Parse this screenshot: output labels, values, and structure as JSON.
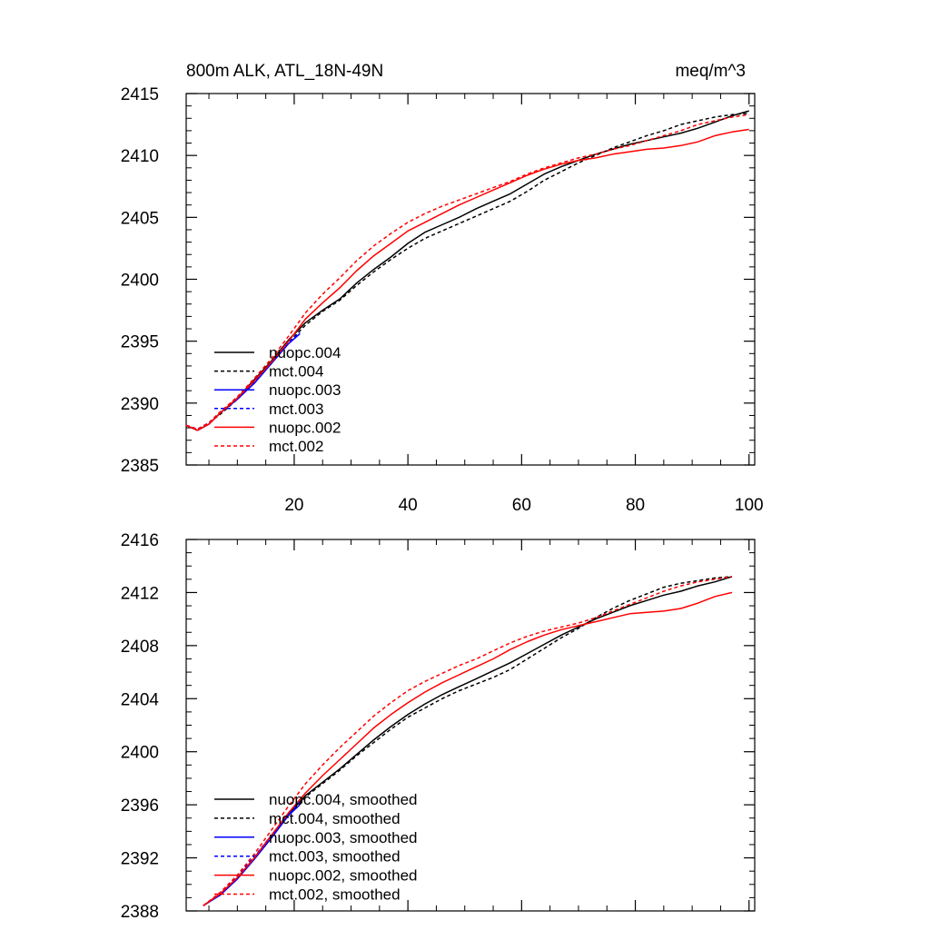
{
  "top_panel": {
    "title_left": "800m ALK, ATL_18N-49N",
    "title_right": "meq/m^3"
  },
  "chart_data": [
    {
      "type": "line",
      "title": "800m ALK, ATL_18N-49N",
      "units": "meq/m^3",
      "xlim": [
        1,
        101
      ],
      "ylim": [
        2385,
        2415
      ],
      "x_ticks": [
        20,
        40,
        60,
        80,
        100
      ],
      "y_ticks": [
        2385,
        2390,
        2395,
        2400,
        2405,
        2410,
        2415
      ],
      "grid": false,
      "legend_position": "bottom-left",
      "series": [
        {
          "name": "nuopc.004",
          "color": "#000000",
          "dash": "solid",
          "x": [
            1,
            3,
            5,
            7,
            10,
            13,
            16,
            19,
            22,
            25,
            28,
            31,
            34,
            37,
            40,
            43,
            46,
            49,
            52,
            55,
            58,
            61,
            64,
            67,
            70,
            73,
            76,
            79,
            82,
            85,
            88,
            91,
            94,
            97,
            100
          ],
          "y": [
            2388.2,
            2387.8,
            2388.3,
            2389.2,
            2390.4,
            2391.9,
            2393.4,
            2395.1,
            2396.5,
            2397.5,
            2398.4,
            2399.7,
            2400.8,
            2401.8,
            2402.9,
            2403.8,
            2404.4,
            2405.0,
            2405.7,
            2406.3,
            2406.9,
            2407.7,
            2408.5,
            2409.1,
            2409.6,
            2410.1,
            2410.5,
            2410.9,
            2411.2,
            2411.5,
            2411.8,
            2412.2,
            2412.7,
            2413.2,
            2413.6
          ]
        },
        {
          "name": "mct.004",
          "color": "#000000",
          "dash": "dashed",
          "x": [
            1,
            3,
            5,
            7,
            10,
            13,
            16,
            19,
            22,
            25,
            28,
            31,
            34,
            37,
            40,
            43,
            46,
            49,
            52,
            55,
            58,
            61,
            64,
            67,
            70,
            73,
            76,
            79,
            82,
            85,
            88,
            91,
            94,
            97,
            100
          ],
          "y": [
            2388.2,
            2387.9,
            2388.4,
            2389.1,
            2390.3,
            2391.8,
            2393.2,
            2394.9,
            2396.3,
            2397.4,
            2398.3,
            2399.5,
            2400.6,
            2401.6,
            2402.5,
            2403.3,
            2403.9,
            2404.5,
            2405.1,
            2405.7,
            2406.3,
            2407.1,
            2408.0,
            2408.7,
            2409.4,
            2410.0,
            2410.6,
            2411.1,
            2411.6,
            2412.0,
            2412.5,
            2412.8,
            2413.1,
            2413.3,
            2413.4
          ]
        },
        {
          "name": "nuopc.003",
          "color": "#0000ff",
          "dash": "solid",
          "x": [
            1,
            3,
            5,
            7,
            10,
            13,
            16,
            19,
            21
          ],
          "y": [
            2388.2,
            2387.8,
            2388.3,
            2389.2,
            2390.3,
            2391.6,
            2393.2,
            2394.8,
            2395.6
          ]
        },
        {
          "name": "mct.003",
          "color": "#0000ff",
          "dash": "dashed",
          "x": [
            1,
            3,
            5,
            7,
            10,
            13,
            16,
            19,
            21
          ],
          "y": [
            2388.2,
            2387.9,
            2388.4,
            2389.3,
            2390.4,
            2391.7,
            2393.3,
            2394.9,
            2395.7
          ]
        },
        {
          "name": "nuopc.002",
          "color": "#ff0000",
          "dash": "solid",
          "x": [
            1,
            3,
            5,
            7,
            10,
            13,
            16,
            19,
            22,
            25,
            28,
            31,
            34,
            37,
            40,
            43,
            46,
            49,
            52,
            55,
            58,
            61,
            64,
            67,
            70,
            73,
            76,
            79,
            82,
            85,
            88,
            91,
            94,
            97,
            100
          ],
          "y": [
            2388.2,
            2387.8,
            2388.3,
            2389.2,
            2390.4,
            2391.8,
            2393.3,
            2395.0,
            2396.8,
            2398.1,
            2399.3,
            2400.7,
            2401.9,
            2402.9,
            2403.9,
            2404.6,
            2405.3,
            2406.0,
            2406.6,
            2407.2,
            2407.8,
            2408.4,
            2408.9,
            2409.3,
            2409.6,
            2409.8,
            2410.1,
            2410.3,
            2410.5,
            2410.6,
            2410.8,
            2411.1,
            2411.6,
            2411.9,
            2412.1
          ]
        },
        {
          "name": "mct.002",
          "color": "#ff0000",
          "dash": "dashed",
          "x": [
            1,
            3,
            5,
            7,
            10,
            13,
            16,
            19,
            22,
            25,
            28,
            31,
            34,
            37,
            40,
            43,
            46,
            49,
            52,
            55,
            58,
            61,
            64,
            67,
            70,
            73,
            76,
            79,
            82,
            85,
            88,
            91,
            94,
            97,
            100
          ],
          "y": [
            2388.2,
            2387.9,
            2388.4,
            2389.3,
            2390.5,
            2392.0,
            2393.6,
            2395.4,
            2397.3,
            2398.8,
            2400.1,
            2401.5,
            2402.7,
            2403.7,
            2404.6,
            2405.3,
            2405.9,
            2406.4,
            2406.9,
            2407.4,
            2407.9,
            2408.5,
            2409.0,
            2409.4,
            2409.8,
            2410.1,
            2410.5,
            2410.8,
            2411.2,
            2411.6,
            2412.0,
            2412.5,
            2412.8,
            2413.1,
            2413.3
          ]
        }
      ]
    },
    {
      "type": "line",
      "title": "",
      "xlim": [
        1,
        101
      ],
      "ylim": [
        2388,
        2416
      ],
      "y_ticks": [
        2388,
        2392,
        2396,
        2400,
        2404,
        2408,
        2412,
        2416
      ],
      "grid": false,
      "legend_position": "bottom-left",
      "series": [
        {
          "name": "nuopc.004, smoothed",
          "color": "#000000",
          "dash": "solid",
          "x": [
            4,
            7,
            10,
            13,
            16,
            19,
            22,
            25,
            28,
            31,
            34,
            37,
            40,
            43,
            46,
            49,
            52,
            55,
            58,
            61,
            64,
            67,
            70,
            73,
            76,
            79,
            82,
            85,
            88,
            91,
            94,
            97
          ],
          "y": [
            2388.4,
            2389.3,
            2390.5,
            2392.0,
            2393.7,
            2395.3,
            2396.7,
            2397.7,
            2398.7,
            2399.8,
            2400.9,
            2401.9,
            2402.8,
            2403.6,
            2404.3,
            2404.9,
            2405.5,
            2406.1,
            2406.7,
            2407.4,
            2408.1,
            2408.8,
            2409.4,
            2410.0,
            2410.5,
            2411.0,
            2411.4,
            2411.8,
            2412.1,
            2412.5,
            2412.8,
            2413.2
          ]
        },
        {
          "name": "mct.004, smoothed",
          "color": "#000000",
          "dash": "dashed",
          "x": [
            4,
            7,
            10,
            13,
            16,
            19,
            22,
            25,
            28,
            31,
            34,
            37,
            40,
            43,
            46,
            49,
            52,
            55,
            58,
            61,
            64,
            67,
            70,
            73,
            76,
            79,
            82,
            85,
            88,
            91,
            94,
            97
          ],
          "y": [
            2388.4,
            2389.3,
            2390.5,
            2392.0,
            2393.6,
            2395.2,
            2396.6,
            2397.6,
            2398.6,
            2399.7,
            2400.7,
            2401.7,
            2402.6,
            2403.3,
            2404.0,
            2404.6,
            2405.1,
            2405.6,
            2406.2,
            2407.0,
            2407.8,
            2408.6,
            2409.3,
            2410.1,
            2410.8,
            2411.4,
            2411.9,
            2412.4,
            2412.7,
            2412.9,
            2413.1,
            2413.2
          ]
        },
        {
          "name": "nuopc.003, smoothed",
          "color": "#0000ff",
          "dash": "solid",
          "x": [
            4,
            7,
            10,
            13,
            16,
            19,
            21
          ],
          "y": [
            2388.4,
            2389.2,
            2390.4,
            2391.9,
            2393.5,
            2395.2,
            2396.0
          ]
        },
        {
          "name": "mct.003, smoothed",
          "color": "#0000ff",
          "dash": "dashed",
          "x": [
            4,
            7,
            10,
            13,
            16,
            19,
            21
          ],
          "y": [
            2388.4,
            2389.3,
            2390.6,
            2392.1,
            2393.7,
            2395.3,
            2396.2
          ]
        },
        {
          "name": "nuopc.002, smoothed",
          "color": "#ff0000",
          "dash": "solid",
          "x": [
            4,
            7,
            10,
            13,
            16,
            19,
            22,
            25,
            28,
            31,
            34,
            37,
            40,
            43,
            46,
            49,
            52,
            55,
            58,
            61,
            64,
            67,
            70,
            73,
            76,
            79,
            82,
            85,
            88,
            91,
            94,
            97
          ],
          "y": [
            2388.4,
            2389.3,
            2390.5,
            2392.0,
            2393.7,
            2395.4,
            2396.9,
            2398.2,
            2399.4,
            2400.6,
            2401.8,
            2402.8,
            2403.7,
            2404.5,
            2405.2,
            2405.8,
            2406.4,
            2407.0,
            2407.7,
            2408.3,
            2408.8,
            2409.2,
            2409.5,
            2409.8,
            2410.1,
            2410.4,
            2410.5,
            2410.6,
            2410.8,
            2411.2,
            2411.7,
            2412.0
          ]
        },
        {
          "name": "mct.002, smoothed",
          "color": "#ff0000",
          "dash": "dashed",
          "x": [
            4,
            7,
            10,
            13,
            16,
            19,
            22,
            25,
            28,
            31,
            34,
            37,
            40,
            43,
            46,
            49,
            52,
            55,
            58,
            61,
            64,
            67,
            70,
            73,
            76,
            79,
            82,
            85,
            88,
            91,
            94,
            97
          ],
          "y": [
            2388.4,
            2389.4,
            2390.7,
            2392.3,
            2394.1,
            2395.9,
            2397.6,
            2399.0,
            2400.3,
            2401.5,
            2402.7,
            2403.7,
            2404.6,
            2405.3,
            2405.9,
            2406.5,
            2407.0,
            2407.6,
            2408.2,
            2408.7,
            2409.1,
            2409.4,
            2409.7,
            2410.1,
            2410.6,
            2411.1,
            2411.6,
            2412.1,
            2412.5,
            2412.8,
            2413.0,
            2413.2
          ]
        }
      ]
    }
  ]
}
